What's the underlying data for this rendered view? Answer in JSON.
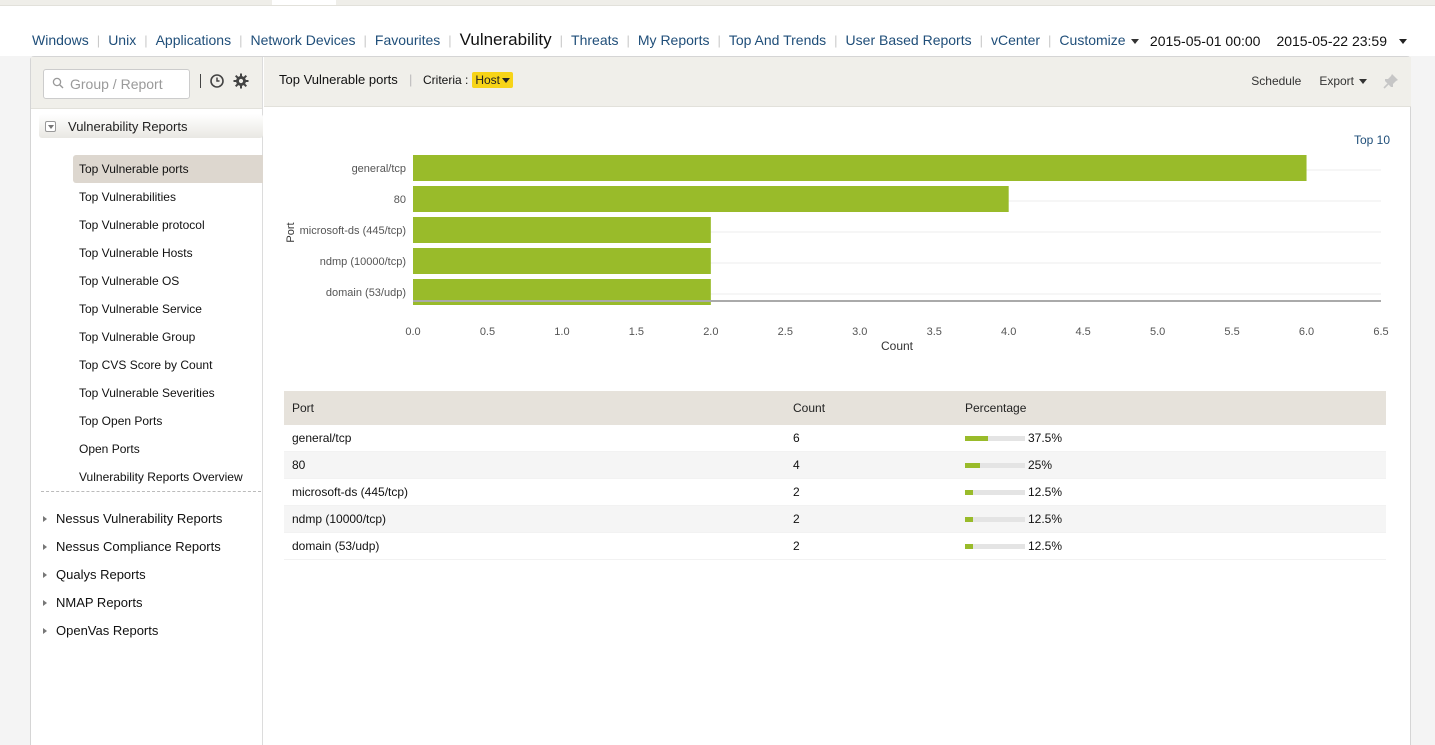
{
  "nav": {
    "items": [
      "Windows",
      "Unix",
      "Applications",
      "Network Devices",
      "Favourites",
      "Vulnerability",
      "Threats",
      "My Reports",
      "Top And Trends",
      "User Based Reports",
      "vCenter",
      "Customize"
    ],
    "active_index": 5
  },
  "date_range": {
    "start": "2015-05-01 00:00",
    "end": "2015-05-22 23:59"
  },
  "sidebar": {
    "search_placeholder": "Group / Report",
    "section_title": "Vulnerability Reports",
    "items": [
      "Top Vulnerable ports",
      "Top Vulnerabilities",
      "Top Vulnerable protocol",
      "Top Vulnerable Hosts",
      "Top Vulnerable OS",
      "Top Vulnerable Service",
      "Top Vulnerable Group",
      "Top CVS Score by Count",
      "Top Vulnerable Severities",
      "Top Open Ports",
      "Open Ports",
      "Vulnerability Reports Overview"
    ],
    "active_index": 0,
    "groups": [
      "Nessus Vulnerability Reports",
      "Nessus Compliance Reports",
      "Qualys Reports",
      "NMAP Reports",
      "OpenVas Reports"
    ]
  },
  "toolbar": {
    "title": "Top Vulnerable ports",
    "criteria_label": "Criteria :",
    "criteria_value": "Host",
    "schedule": "Schedule",
    "export": "Export"
  },
  "top_filter": "Top 10",
  "colors": {
    "bar": "#99bb2a",
    "link": "#1f4e79",
    "highlight": "#f7d418"
  },
  "chart_data": {
    "type": "bar",
    "orientation": "horizontal",
    "categories": [
      "general/tcp",
      "80",
      "microsoft-ds (445/tcp)",
      "ndmp (10000/tcp)",
      "domain (53/udp)"
    ],
    "values": [
      6,
      4,
      2,
      2,
      2
    ],
    "xlabel": "Count",
    "ylabel": "Port",
    "xlim": [
      0,
      6.5
    ],
    "xticks": [
      "0.0",
      "0.5",
      "1.0",
      "1.5",
      "2.0",
      "2.5",
      "3.0",
      "3.5",
      "4.0",
      "4.5",
      "5.0",
      "5.5",
      "6.0",
      "6.5"
    ],
    "grid": true
  },
  "table": {
    "headers": [
      "Port",
      "Count",
      "Percentage"
    ],
    "rows": [
      {
        "port": "general/tcp",
        "count": "6",
        "percentage": "37.5%",
        "fraction": 0.375
      },
      {
        "port": "80",
        "count": "4",
        "percentage": "25%",
        "fraction": 0.25
      },
      {
        "port": "microsoft-ds (445/tcp)",
        "count": "2",
        "percentage": "12.5%",
        "fraction": 0.125
      },
      {
        "port": "ndmp (10000/tcp)",
        "count": "2",
        "percentage": "12.5%",
        "fraction": 0.125
      },
      {
        "port": "domain (53/udp)",
        "count": "2",
        "percentage": "12.5%",
        "fraction": 0.125
      }
    ]
  }
}
